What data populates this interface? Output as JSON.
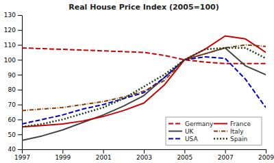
{
  "chart_data": {
    "type": "line",
    "title": "Real House Price Index (2005=100)",
    "x": [
      1997,
      1998,
      1999,
      2000,
      2001,
      2002,
      2003,
      2004,
      2005,
      2006,
      2007,
      2008,
      2009
    ],
    "series": [
      {
        "name": "Germany",
        "color": "#cc0000",
        "line_style": "dashed",
        "values": [
          108,
          107.5,
          107,
          106.5,
          106,
          105.5,
          105,
          103,
          100,
          98.5,
          97.5,
          97.5,
          97.5
        ]
      },
      {
        "name": "UK",
        "color": "#444444",
        "line_style": "solid",
        "values": [
          46,
          49,
          53,
          58,
          63,
          69,
          76,
          88,
          100,
          104,
          108,
          96,
          90
        ]
      },
      {
        "name": "USA",
        "color": "#0000cc",
        "line_style": "dashed",
        "values": [
          57,
          60,
          63,
          67,
          70,
          74,
          78,
          88,
          100,
          102,
          101,
          87,
          68
        ]
      },
      {
        "name": "France",
        "color": "#cc0000",
        "line_style": "solid",
        "values": [
          55,
          56,
          57,
          59,
          62,
          66,
          71,
          83,
          100,
          107,
          116,
          114,
          105
        ]
      },
      {
        "name": "Italy",
        "color": "#8b3a00",
        "line_style": "dashdot",
        "values": [
          66,
          67,
          68,
          70,
          72,
          75,
          79,
          86,
          100,
          104,
          108,
          110,
          109
        ]
      },
      {
        "name": "Spain",
        "color": "#1a3a1a",
        "line_style": "dotted",
        "values": [
          55,
          57,
          60,
          64,
          68,
          74,
          82,
          90,
          100,
          107,
          108,
          108,
          101
        ]
      }
    ],
    "xlim": [
      1997,
      2009
    ],
    "ylim": [
      40,
      130
    ],
    "xticks": [
      1997,
      1999,
      2001,
      2003,
      2005,
      2007,
      2009
    ],
    "yticks": [
      40,
      50,
      60,
      70,
      80,
      90,
      100,
      110,
      120,
      130
    ],
    "grid": false,
    "legend": "lower right"
  }
}
